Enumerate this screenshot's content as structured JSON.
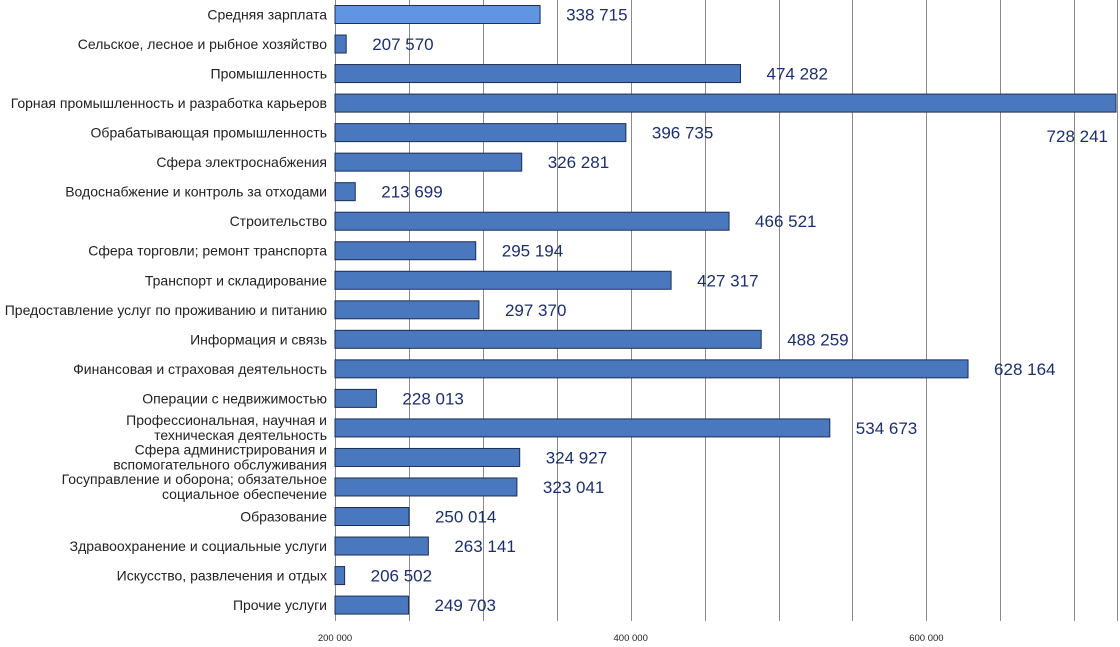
{
  "chart_data": {
    "type": "bar",
    "orientation": "horizontal",
    "title": "",
    "xlabel": "",
    "ylabel": "",
    "xlim": [
      200000,
      728241
    ],
    "grid": true,
    "legend": "none",
    "colors": {
      "bar": "#4a78bf",
      "highlight": "#5f95e3",
      "edge": "#1f2d4f",
      "value_text": "#1c2f6b"
    },
    "ticks": [
      {
        "value": 200000,
        "label": "200 000"
      },
      {
        "value": 400000,
        "label": "400 000"
      },
      {
        "value": 600000,
        "label": "600 000"
      }
    ],
    "categories": [
      "Средняя зарплата",
      "Сельское, лесное и рыбное хозяйство",
      "Промышленность",
      "Горная промышленность и разработка карьеров",
      "Обрабатывающая промышленность",
      "Сфера электроснабжения",
      "Водоснабжение и контроль за отходами",
      "Строительство",
      "Сфера торговли; ремонт транспорта",
      "Транспорт и складирование",
      "Предоставление услуг по проживанию и питанию",
      "Информация и связь",
      "Финансовая и страховая деятельность",
      "Операции с недвижимостью",
      "Профессиональная, научная и\nтехническая деятельность",
      "Сфера администрирования и\nвспомогательного обслуживания",
      "Госуправление и оборона; обязательное\nсоциальное обеспечение",
      "Образование",
      "Здравоохранение и социальные услуги",
      "Искусство, развлечения и отдых",
      "Прочие услуги"
    ],
    "values": [
      338715,
      207570,
      474282,
      728241,
      396735,
      326281,
      213699,
      466521,
      295194,
      427317,
      297370,
      488259,
      628164,
      228013,
      534673,
      324927,
      323041,
      250014,
      263141,
      206502,
      249703
    ],
    "value_labels": [
      "338 715",
      "207 570",
      "474 282",
      "728 241",
      "396 735",
      "326 281",
      "213 699",
      "466 521",
      "295 194",
      "427 317",
      "297 370",
      "488 259",
      "628 164",
      "228 013",
      "534 673",
      "324 927",
      "323 041",
      "250 014",
      "263 141",
      "206 502",
      "249 703"
    ],
    "highlight_index": 0
  }
}
